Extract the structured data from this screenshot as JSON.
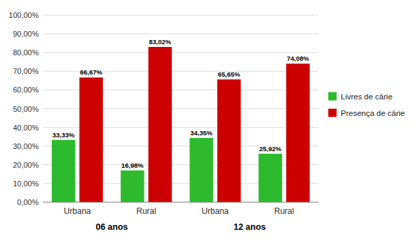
{
  "chart_data": {
    "type": "bar",
    "categories": [
      "Urbana",
      "Rural",
      "Urbana",
      "Rural"
    ],
    "annotations": [
      "06 anos",
      "12 anos"
    ],
    "series": [
      {
        "name": "Livres de cárie",
        "color": "#2dbb2d",
        "values": [
          33.33,
          16.98,
          34.35,
          25.92
        ],
        "value_labels": [
          "33,33%",
          "16,98%",
          "34,35%",
          "25,92%"
        ]
      },
      {
        "name": "Presença de cárie",
        "color": "#cc0000",
        "values": [
          66.67,
          83.02,
          65.65,
          74.08
        ],
        "value_labels": [
          "66,67%",
          "83,02%",
          "65,65%",
          "74,08%"
        ]
      }
    ],
    "ylim": [
      0,
      100
    ],
    "yticks": [
      {
        "value": 0,
        "label": "0,00%"
      },
      {
        "value": 10,
        "label": "10,00%"
      },
      {
        "value": 20,
        "label": "20,00%"
      },
      {
        "value": 30,
        "label": "30,00%"
      },
      {
        "value": 40,
        "label": "40,00%"
      },
      {
        "value": 50,
        "label": "50,00%"
      },
      {
        "value": 60,
        "label": "60,00%"
      },
      {
        "value": 70,
        "label": "70,00%"
      },
      {
        "value": 80,
        "label": "80,00%"
      },
      {
        "value": 90,
        "label": "90,00%"
      },
      {
        "value": 100,
        "label": "100,00%"
      }
    ],
    "grid": true,
    "data_labels": true,
    "legend": "right"
  }
}
